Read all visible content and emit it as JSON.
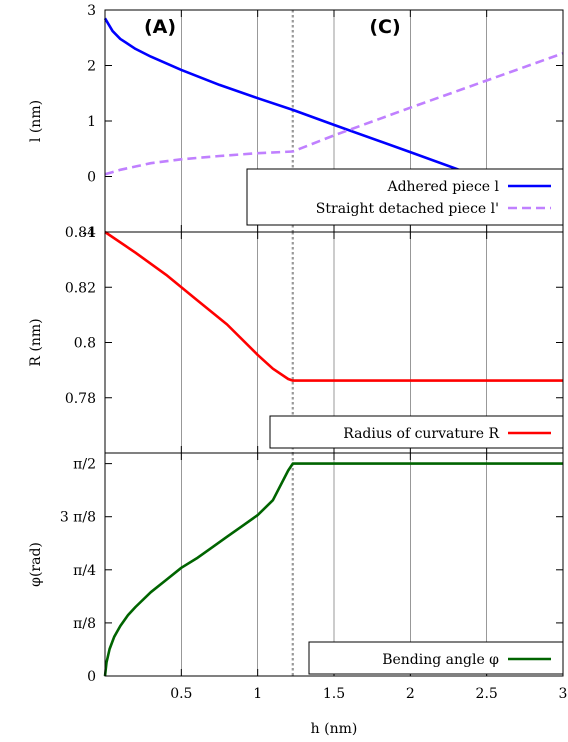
{
  "chart_data": [
    {
      "type": "line",
      "panel": "top",
      "ylabel": "l (nm)",
      "ylim": [
        -1,
        3
      ],
      "yticks": [
        -1,
        0,
        1,
        2,
        3
      ],
      "ytick_labels": [
        "-1",
        "0",
        "1",
        "2",
        "3"
      ],
      "xlim": [
        0,
        3
      ],
      "annotations": [
        "(A)",
        "(C)"
      ],
      "legend_position": "bottom-right",
      "series": [
        {
          "name": "Adhered piece l",
          "color": "#0000ff",
          "dash": "solid",
          "x": [
            0,
            0.05,
            0.1,
            0.2,
            0.3,
            0.5,
            0.75,
            1.0,
            1.23,
            1.5,
            2.0,
            2.5,
            3.0
          ],
          "y": [
            2.85,
            2.62,
            2.48,
            2.3,
            2.16,
            1.92,
            1.65,
            1.41,
            1.2,
            0.93,
            0.44,
            -0.06,
            -0.56
          ]
        },
        {
          "name": "Straight detached piece l'",
          "color": "#c080ff",
          "dash": "dashed",
          "x": [
            0,
            0.05,
            0.1,
            0.2,
            0.3,
            0.5,
            0.75,
            1.0,
            1.23,
            1.5,
            2.0,
            2.5,
            3.0
          ],
          "y": [
            0.04,
            0.08,
            0.12,
            0.18,
            0.24,
            0.31,
            0.37,
            0.42,
            0.45,
            0.74,
            1.24,
            1.73,
            2.22
          ]
        }
      ]
    },
    {
      "type": "line",
      "panel": "middle",
      "ylabel": "R (nm)",
      "ylim": [
        0.76,
        0.84
      ],
      "yticks": [
        0.78,
        0.8,
        0.82,
        0.84
      ],
      "ytick_labels": [
        "0.78",
        "0.8",
        "0.82",
        "0.84"
      ],
      "xlim": [
        0,
        3
      ],
      "legend_position": "bottom-right",
      "series": [
        {
          "name": "Radius of curvature R",
          "color": "#ff0000",
          "dash": "solid",
          "x": [
            0,
            0.2,
            0.4,
            0.6,
            0.8,
            1.0,
            1.1,
            1.2,
            1.23,
            1.5,
            2.0,
            2.5,
            3.0
          ],
          "y": [
            0.84,
            0.8325,
            0.8245,
            0.8155,
            0.8065,
            0.7955,
            0.7905,
            0.7868,
            0.7862,
            0.7862,
            0.7862,
            0.7862,
            0.7862
          ]
        }
      ]
    },
    {
      "type": "line",
      "panel": "bottom",
      "ylabel": "φ(rad)",
      "xlabel": "h (nm)",
      "ylim": [
        0,
        1.6493
      ],
      "yticks": [
        0,
        0.3927,
        0.7854,
        1.1781,
        1.5708
      ],
      "ytick_labels": [
        "0",
        "π/8",
        "π/4",
        "3 π/8",
        "π/2"
      ],
      "xlim": [
        0,
        3
      ],
      "xticks": [
        0.5,
        1,
        1.5,
        2,
        2.5,
        3
      ],
      "xtick_labels": [
        "0.5",
        "1",
        "1.5",
        "2",
        "2.5",
        "3"
      ],
      "legend_position": "bottom-right",
      "series": [
        {
          "name": "Bending angle φ",
          "color": "#006400",
          "dash": "solid",
          "x": [
            0,
            0.01,
            0.03,
            0.06,
            0.1,
            0.15,
            0.2,
            0.3,
            0.4,
            0.5,
            0.6,
            0.7,
            0.8,
            0.9,
            1.0,
            1.1,
            1.2,
            1.23,
            1.5,
            2.0,
            2.5,
            3.0
          ],
          "y": [
            0,
            0.1,
            0.2,
            0.29,
            0.37,
            0.45,
            0.51,
            0.62,
            0.71,
            0.8,
            0.87,
            0.95,
            1.03,
            1.11,
            1.19,
            1.3,
            1.52,
            1.5708,
            1.5708,
            1.5708,
            1.5708,
            1.5708
          ]
        }
      ]
    },
    {
      "type": "vline",
      "name": "transition",
      "x": 1.23,
      "color": "#999999",
      "dash": "dotted"
    }
  ]
}
